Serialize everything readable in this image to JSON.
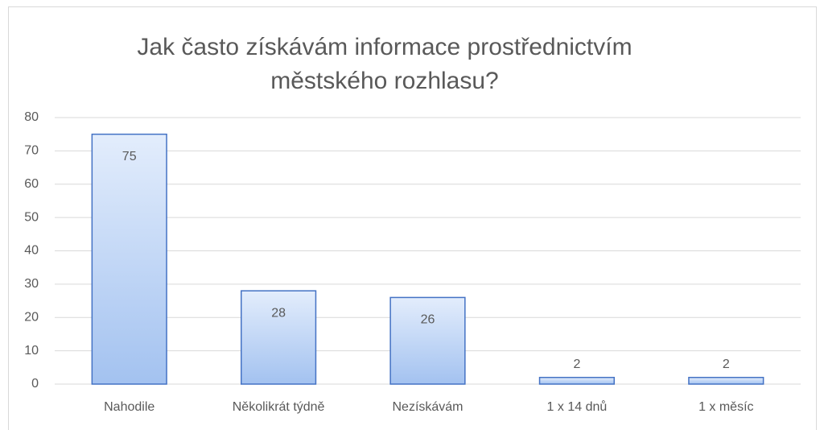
{
  "chart_data": {
    "type": "bar",
    "title": "Jak často získávám informace prostřednictvím městského rozhlasu?",
    "categories": [
      "Nahodile",
      "Několikrát týdně",
      "Nezískávám",
      "1 x 14 dnů",
      "1 x měsíc"
    ],
    "values": [
      75,
      28,
      26,
      2,
      2
    ],
    "color": "#4472c4",
    "ylim": [
      0,
      80
    ],
    "yticks": [
      0,
      10,
      20,
      30,
      40,
      50,
      60,
      70,
      80
    ],
    "grid": true
  }
}
